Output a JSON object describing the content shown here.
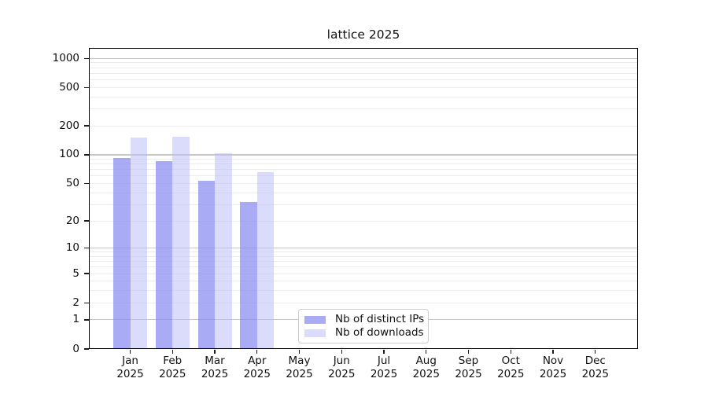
{
  "title": "lattice 2025",
  "chart_data": {
    "type": "bar",
    "title": "lattice 2025",
    "categories": [
      "Jan 2025",
      "Feb 2025",
      "Mar 2025",
      "Apr 2025",
      "May 2025",
      "Jun 2025",
      "Jul 2025",
      "Aug 2025",
      "Sep 2025",
      "Oct 2025",
      "Nov 2025",
      "Dec 2025"
    ],
    "series": [
      {
        "name": "Nb of distinct IPs",
        "color": "rgba(136,138,240,0.72)",
        "values": [
          92,
          86,
          54,
          32,
          0,
          0,
          0,
          0,
          0,
          0,
          0,
          0
        ]
      },
      {
        "name": "Nb of downloads",
        "color": "rgba(190,190,250,0.55)",
        "values": [
          150,
          153,
          104,
          66,
          0,
          0,
          0,
          0,
          0,
          0,
          0,
          0
        ]
      }
    ],
    "xlabel": "",
    "ylabel": "",
    "yscale": "log1p",
    "y_ticks": [
      0,
      1,
      2,
      5,
      10,
      20,
      50,
      100,
      200,
      500,
      1000
    ],
    "ylim": [
      0,
      1280
    ],
    "grid": "horizontal, major and minor",
    "legend_position": "lower center",
    "colors": {
      "grid_major": "#c6c6c6",
      "grid_minor": "#ececec",
      "spine": "#000000",
      "tick": "#1a1a1a",
      "text": "#111111",
      "legend_border": "#cccccc"
    }
  }
}
